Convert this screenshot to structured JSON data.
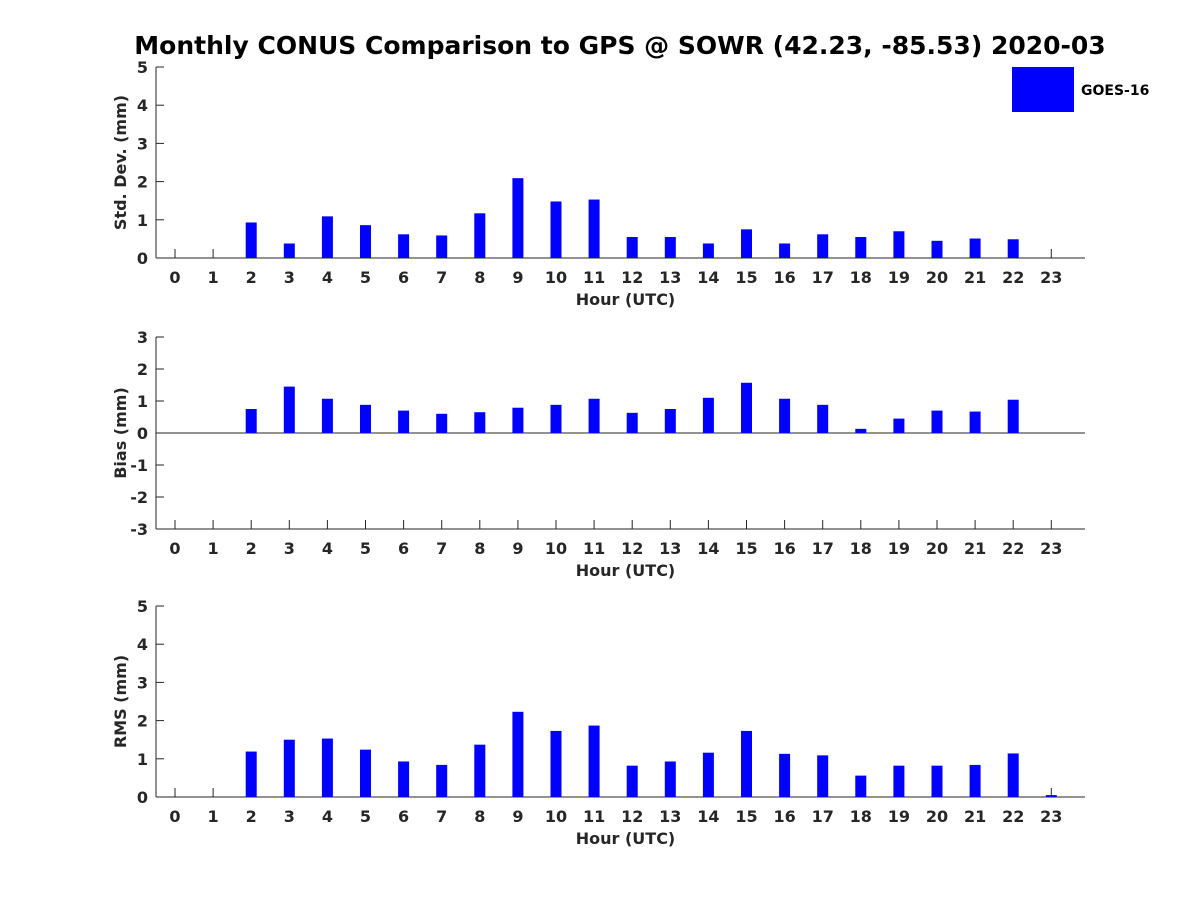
{
  "title": "Monthly CONUS Comparison to GPS @ SOWR (42.23, -85.53) 2020-03",
  "legend": {
    "label": "GOES-16",
    "color": "#0000ff"
  },
  "chart_data": [
    {
      "type": "bar",
      "title": "Monthly CONUS Comparison to GPS @ SOWR (42.23, -85.53) 2020-03",
      "xlabel": "Hour (UTC)",
      "ylabel": "Std. Dev. (mm)",
      "categories": [
        "0",
        "1",
        "2",
        "3",
        "4",
        "5",
        "6",
        "7",
        "8",
        "9",
        "10",
        "11",
        "12",
        "13",
        "14",
        "15",
        "16",
        "17",
        "18",
        "19",
        "20",
        "21",
        "22",
        "23"
      ],
      "series": [
        {
          "name": "GOES-16",
          "color": "#0000ff",
          "values": [
            0,
            0,
            0.93,
            0.38,
            1.09,
            0.86,
            0.62,
            0.59,
            1.17,
            2.09,
            1.48,
            1.53,
            0.55,
            0.55,
            0.38,
            0.75,
            0.38,
            0.62,
            0.55,
            0.7,
            0.45,
            0.51,
            0.49,
            0
          ]
        }
      ],
      "ylim": [
        0,
        5
      ],
      "yticks": [
        0,
        1,
        2,
        3,
        4,
        5
      ],
      "legend_position": "top-right"
    },
    {
      "type": "bar",
      "xlabel": "Hour (UTC)",
      "ylabel": "Bias (mm)",
      "categories": [
        "0",
        "1",
        "2",
        "3",
        "4",
        "5",
        "6",
        "7",
        "8",
        "9",
        "10",
        "11",
        "12",
        "13",
        "14",
        "15",
        "16",
        "17",
        "18",
        "19",
        "20",
        "21",
        "22",
        "23"
      ],
      "series": [
        {
          "name": "GOES-16",
          "color": "#0000ff",
          "values": [
            0,
            0,
            0.75,
            1.45,
            1.07,
            0.88,
            0.7,
            0.6,
            0.65,
            0.79,
            0.88,
            1.07,
            0.63,
            0.75,
            1.1,
            1.57,
            1.07,
            0.88,
            0.13,
            0.45,
            0.7,
            0.67,
            1.04,
            0
          ]
        }
      ],
      "ylim": [
        -3,
        3
      ],
      "yticks": [
        -3,
        -2,
        -1,
        0,
        1,
        2,
        3
      ]
    },
    {
      "type": "bar",
      "xlabel": "Hour (UTC)",
      "ylabel": "RMS (mm)",
      "categories": [
        "0",
        "1",
        "2",
        "3",
        "4",
        "5",
        "6",
        "7",
        "8",
        "9",
        "10",
        "11",
        "12",
        "13",
        "14",
        "15",
        "16",
        "17",
        "18",
        "19",
        "20",
        "21",
        "22",
        "23"
      ],
      "series": [
        {
          "name": "GOES-16",
          "color": "#0000ff",
          "values": [
            0,
            0,
            1.19,
            1.5,
            1.53,
            1.24,
            0.93,
            0.84,
            1.37,
            2.23,
            1.73,
            1.87,
            0.82,
            0.93,
            1.16,
            1.73,
            1.13,
            1.09,
            0.56,
            0.82,
            0.82,
            0.84,
            1.14,
            0.05
          ]
        }
      ],
      "ylim": [
        0,
        5
      ],
      "yticks": [
        0,
        1,
        2,
        3,
        4,
        5
      ]
    }
  ]
}
